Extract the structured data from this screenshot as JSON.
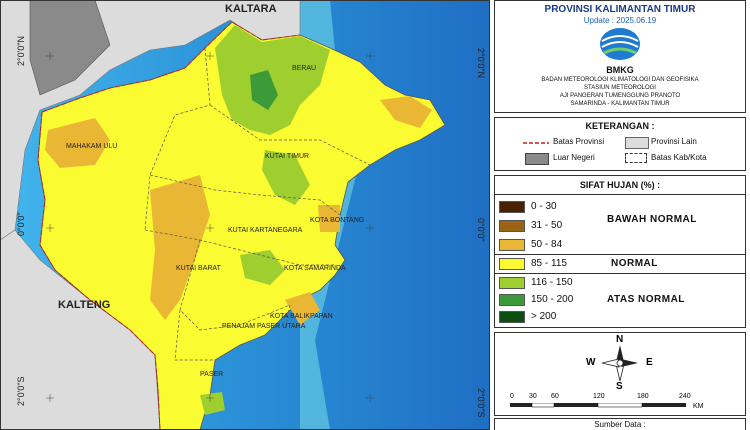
{
  "map": {
    "lat_labels_left": [
      "2°0'0\"N",
      "0°0'0\"",
      "2°0'0\"S"
    ],
    "lat_labels_right": [
      "2°0'0\"N",
      "0°0'0\"",
      "2°0'0\"S"
    ],
    "provinces": [
      "KALTARA",
      "KALTENG"
    ],
    "regencies": [
      "BERAU",
      "MAHAKAM ULU",
      "KUTAI TIMUR",
      "KOTA BONTANG",
      "KUTAI KARTANEGARA",
      "KUTAI BARAT",
      "KOTA SAMARINDA",
      "KOTA BALIKPAPAN",
      "PENAJAM PASER UTARA",
      "PASER"
    ]
  },
  "header": {
    "title": "PROVINSI KALIMANTAN TIMUR",
    "update": "Update : 2025.06.19",
    "logo_text": "BMKG",
    "agency_lines": [
      "BADAN METEOROLOGI KLIMATOLOGI DAN GEOFISIKA",
      "STASIUN METEOROLOGI",
      "AJI PANGERAN TUMENGGUNG PRANOTO",
      "SAMARINDA - KALIMANTAN TIMUR"
    ]
  },
  "keterangan": {
    "title": "KETERANGAN :",
    "items": [
      "Batas Provinsi",
      "Provinsi Lain",
      "Luar Negeri",
      "Batas Kab/Kota"
    ]
  },
  "sifat_hujan": {
    "title": "SIFAT HUJAN (%) :",
    "classes": [
      {
        "range": "0 - 30",
        "color": "#4a2200"
      },
      {
        "range": "31 - 50",
        "color": "#9a6316"
      },
      {
        "range": "50 - 84",
        "color": "#eab735"
      },
      {
        "range": "85 - 115",
        "color": "#fbfb32"
      },
      {
        "range": "116 - 150",
        "color": "#9fcf2e"
      },
      {
        "range": "150 - 200",
        "color": "#3c9a39"
      },
      {
        "range": "> 200",
        "color": "#0b4f12"
      }
    ],
    "categories": [
      "BAWAH NORMAL",
      "NORMAL",
      "ATAS NORMAL"
    ]
  },
  "compass": {
    "n": "N",
    "s": "S",
    "e": "E",
    "w": "W"
  },
  "scale": {
    "ticks": [
      "0",
      "30",
      "60",
      "120",
      "180",
      "240"
    ],
    "unit": "KM"
  },
  "source": {
    "label": "Sumber Data :"
  },
  "colors": {
    "sea": "#2a8fd6",
    "other_province": "#dcdcdc",
    "foreign": "#8a8a8a",
    "normal": "#fbfb32"
  }
}
